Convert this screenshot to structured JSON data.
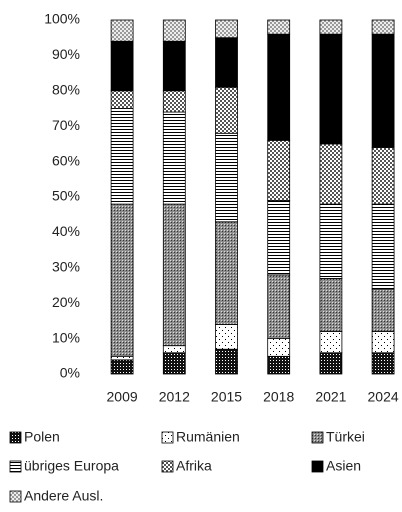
{
  "chart_data": {
    "type": "stacked_bar",
    "categories": [
      "2009",
      "2012",
      "2015",
      "2018",
      "2021",
      "2024"
    ],
    "series": [
      {
        "name": "Polen",
        "color": "#111111",
        "values": [
          4,
          6,
          7,
          5,
          6,
          6
        ]
      },
      {
        "name": "Rumänien",
        "color": "#ffffff",
        "values": [
          1,
          2,
          7,
          5,
          6,
          6
        ]
      },
      {
        "name": "Türkei",
        "color": "#8c8c8c",
        "values": [
          43,
          40,
          29,
          18,
          15,
          12
        ]
      },
      {
        "name": "übriges Europa",
        "color": "#ffffff",
        "values": [
          27,
          26,
          25,
          21,
          21,
          24
        ]
      },
      {
        "name": "Afrika",
        "color": "#555555",
        "values": [
          5,
          6,
          13,
          17,
          17,
          16
        ]
      },
      {
        "name": "Asien",
        "color": "#000000",
        "values": [
          14,
          14,
          14,
          30,
          31,
          32
        ]
      },
      {
        "name": "Andere Ausl.",
        "color": "#9a9a9a",
        "values": [
          6,
          6,
          5,
          4,
          4,
          4
        ]
      }
    ],
    "ylim": [
      0,
      100
    ],
    "yticks": [
      {
        "value": 0,
        "label": "0%"
      },
      {
        "value": 10,
        "label": "10%"
      },
      {
        "value": 20,
        "label": "20%"
      },
      {
        "value": 30,
        "label": "30%"
      },
      {
        "value": 40,
        "label": "40%"
      },
      {
        "value": 50,
        "label": "50%"
      },
      {
        "value": 60,
        "label": "60%"
      },
      {
        "value": 70,
        "label": "70%"
      },
      {
        "value": 80,
        "label": "80%"
      },
      {
        "value": 90,
        "label": "90%"
      },
      {
        "value": 100,
        "label": "100%"
      }
    ],
    "grid": false
  }
}
